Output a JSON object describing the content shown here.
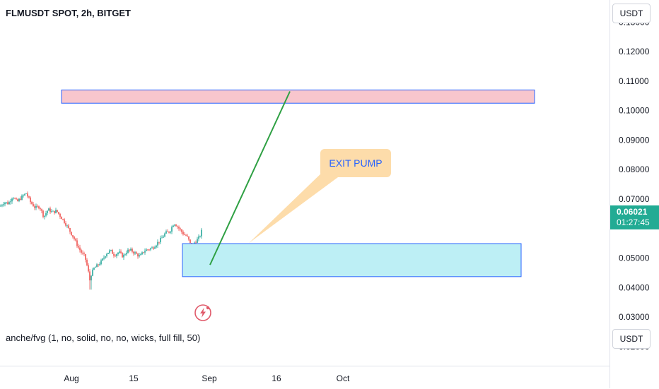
{
  "header": {
    "title": "FLMUSDT SPOT, 2h, BITGET"
  },
  "axis": {
    "unit_top": "USDT",
    "unit_bottom": "USDT"
  },
  "indicator": {
    "label": "anche/fvg (1, no, solid, no, no, wicks, full fill, 50)"
  },
  "price_tag": {
    "price": "0.06021",
    "countdown": "01:27:45"
  },
  "annotations": {
    "callout": "EXIT PUMP"
  },
  "colors": {
    "up": "#26a69a",
    "down": "#ef5350",
    "resistance_zone": "#f8c6cd",
    "support_zone": "#bdeff5",
    "zone_border": "#2962ff",
    "trend_line": "#2ea043",
    "callout_bg": "#fddcaa",
    "callout_text": "#2962ff"
  },
  "icons": {
    "bottom_logo": "lightning-icon"
  },
  "chart_data": {
    "type": "candlestick",
    "ylim": [
      0.0135,
      0.1375
    ],
    "y_ticks": [
      "0.13000",
      "0.12000",
      "0.11000",
      "0.10000",
      "0.09000",
      "0.08000",
      "0.07000",
      "0.05000",
      "0.04000",
      "0.03000",
      "0.02000"
    ],
    "x_ticks": [
      "Aug",
      "15",
      "Sep",
      "16",
      "Oct"
    ],
    "price_path": [
      [
        0,
        0.0675
      ],
      [
        6,
        0.069
      ],
      [
        12,
        0.0685
      ],
      [
        18,
        0.071
      ],
      [
        24,
        0.069
      ],
      [
        30,
        0.0705
      ],
      [
        37,
        0.072
      ],
      [
        43,
        0.069
      ],
      [
        50,
        0.067
      ],
      [
        56,
        0.0675
      ],
      [
        62,
        0.064
      ],
      [
        68,
        0.0665
      ],
      [
        74,
        0.0655
      ],
      [
        80,
        0.066
      ],
      [
        86,
        0.064
      ],
      [
        92,
        0.062
      ],
      [
        98,
        0.0595
      ],
      [
        104,
        0.057
      ],
      [
        110,
        0.054
      ],
      [
        116,
        0.0515
      ],
      [
        120,
        0.0505
      ],
      [
        124,
        0.0465
      ],
      [
        127,
        0.0425
      ],
      [
        129,
        0.0445
      ],
      [
        133,
        0.0465
      ],
      [
        138,
        0.0475
      ],
      [
        144,
        0.049
      ],
      [
        150,
        0.0515
      ],
      [
        156,
        0.0525
      ],
      [
        162,
        0.051
      ],
      [
        168,
        0.052
      ],
      [
        174,
        0.0505
      ],
      [
        180,
        0.0525
      ],
      [
        186,
        0.0525
      ],
      [
        192,
        0.0515
      ],
      [
        198,
        0.0505
      ],
      [
        204,
        0.0525
      ],
      [
        210,
        0.053
      ],
      [
        216,
        0.0535
      ],
      [
        222,
        0.055
      ],
      [
        228,
        0.0565
      ],
      [
        234,
        0.0585
      ],
      [
        240,
        0.059
      ],
      [
        246,
        0.062
      ],
      [
        250,
        0.061
      ],
      [
        255,
        0.0595
      ],
      [
        260,
        0.058
      ],
      [
        264,
        0.0575
      ],
      [
        268,
        0.0555
      ],
      [
        271,
        0.0535
      ],
      [
        274,
        0.055
      ],
      [
        278,
        0.056
      ],
      [
        282,
        0.057
      ],
      [
        286,
        0.0598
      ]
    ],
    "resistance_zone": {
      "x_start": 87,
      "x_end": 756,
      "y_low": 0.1025,
      "y_high": 0.107
    },
    "support_zone": {
      "x_start": 258,
      "x_end": 737,
      "y_low": 0.0437,
      "y_high": 0.0549
    },
    "trend_line": {
      "from": [
        297,
        0.0477
      ],
      "to": [
        410,
        0.1065
      ]
    },
    "callout_anchor": [
      352,
      0.0551
    ],
    "last_price": 0.06021
  }
}
